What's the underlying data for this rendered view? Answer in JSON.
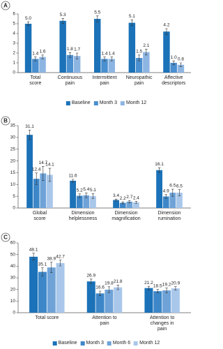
{
  "chart_data": [
    {
      "type": "bar",
      "label": "A",
      "categories": [
        "Total score",
        "Continuous pain",
        "Intermittent pain",
        "Neuropathic pain",
        "Affective descriptors"
      ],
      "ylim": [
        0,
        6
      ],
      "yticks": [
        0,
        1,
        2,
        3,
        4,
        5,
        6
      ],
      "grid": false,
      "legend": "bottom",
      "series": [
        {
          "name": "Baseline",
          "color": "#1b72b8",
          "values": [
            5.0,
            5.3,
            5.5,
            5.1,
            4.2
          ],
          "value_labels": [
            "5.0",
            "5.3",
            "5.5",
            "5.1",
            "4.2"
          ],
          "errors": [
            0.2,
            0.25,
            0.3,
            0.3,
            0.3
          ]
        },
        {
          "name": "Month 3",
          "color": "#4a8fcf",
          "values": [
            1.4,
            1.8,
            1.4,
            1.5,
            1.0
          ],
          "value_labels": [
            "1.4",
            "1.8",
            "1.4",
            "1.5",
            "1.0"
          ],
          "errors": [
            0.2,
            0.25,
            0.2,
            0.3,
            0.2
          ]
        },
        {
          "name": "Month 12",
          "color": "#8db5e2",
          "values": [
            1.6,
            1.7,
            1.4,
            2.1,
            0.8
          ],
          "value_labels": [
            "1.6",
            "1.7",
            "1.4",
            "2.1",
            "0.8"
          ],
          "errors": [
            0.2,
            0.3,
            0.2,
            0.3,
            0.2
          ]
        }
      ]
    },
    {
      "type": "bar",
      "label": "B",
      "categories": [
        "Global score",
        "Dimension helplessness",
        "Dimension magnification",
        "Dimension rumination"
      ],
      "ylim": [
        0,
        35
      ],
      "yticks": [
        0,
        5,
        10,
        15,
        20,
        25,
        30,
        35
      ],
      "grid": false,
      "series": [
        {
          "color": "#1b72b8",
          "values": [
            31.1,
            11.6,
            3.4,
            16.1
          ],
          "errors": [
            2,
            0.6,
            0.4,
            1
          ]
        },
        {
          "color": "#3d87c9",
          "values": [
            12.4,
            5.2,
            2.2,
            4.9
          ],
          "errors": [
            2.5,
            0.8,
            0.4,
            0.8
          ]
        },
        {
          "color": "#6fa3d8",
          "values": [
            14.7,
            5.4,
            2.7,
            6.5
          ],
          "errors": [
            3,
            1,
            0.5,
            1.5
          ]
        },
        {
          "color": "#a9c7ea",
          "values": [
            14.1,
            5.1,
            2.4,
            6.5
          ],
          "errors": [
            2.8,
            1,
            0.4,
            1.3
          ]
        }
      ]
    },
    {
      "type": "bar",
      "label": "C",
      "categories": [
        "Total score",
        "Attention to pain",
        "Attention to changes in pain"
      ],
      "ylim": [
        0,
        60
      ],
      "yticks": [
        0,
        10,
        20,
        30,
        40,
        50,
        60
      ],
      "grid": false,
      "legend": "bottom",
      "series": [
        {
          "name": "Baseline",
          "color": "#1b72b8",
          "values": [
            48.1,
            26.9,
            21.2
          ],
          "errors": [
            3,
            2,
            1.5
          ]
        },
        {
          "name": "Month 3",
          "color": "#3d87c9",
          "values": [
            35.1,
            16.6,
            18.5
          ],
          "errors": [
            3.5,
            2,
            1.5
          ]
        },
        {
          "name": "Month 6",
          "color": "#6fa3d8",
          "values": [
            38.9,
            19.8,
            19.2
          ],
          "errors": [
            4.5,
            2.5,
            2
          ]
        },
        {
          "name": "Month 12",
          "color": "#a9c7ea",
          "values": [
            42.7,
            21.8,
            20.9
          ],
          "errors": [
            2.5,
            2,
            1.5
          ]
        }
      ]
    }
  ]
}
